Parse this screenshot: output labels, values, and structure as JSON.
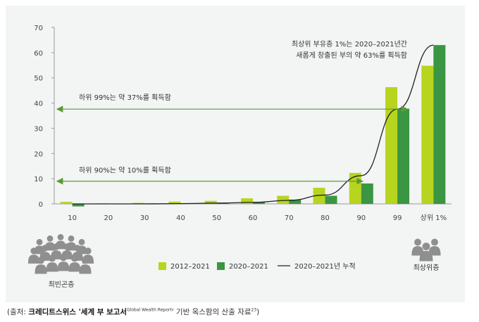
{
  "chart_data": {
    "type": "bar",
    "categories": [
      "10",
      "20",
      "30",
      "40",
      "50",
      "60",
      "70",
      "80",
      "90",
      "99",
      "상위 1%"
    ],
    "series": [
      {
        "name": "2012–2021",
        "values": [
          0.8,
          0.2,
          0.4,
          0.9,
          1.2,
          2.2,
          3.2,
          6.4,
          12.3,
          46.3,
          54.8
        ],
        "color": "#b7d41e"
      },
      {
        "name": "2020–2021",
        "values": [
          -1.0,
          0.1,
          0.2,
          0.3,
          0.5,
          0.8,
          1.7,
          3.2,
          8.1,
          37.8,
          63.0
        ],
        "color": "#3a9642"
      }
    ],
    "line": {
      "name": "2020–2021년 누적",
      "values": [
        0,
        0,
        0,
        0.1,
        0.3,
        0.6,
        1.4,
        3.5,
        11.2,
        37.6,
        63.0
      ],
      "color": "#222222"
    },
    "ylim": [
      0,
      70
    ],
    "yticks": [
      0,
      10,
      20,
      30,
      40,
      50,
      60,
      70
    ],
    "xlabel": "",
    "ylabel": "",
    "grid": false,
    "legend": "bottom-center",
    "annotations": {
      "top_line1": "최상위 부유층 1%는 2020–2021년간",
      "top_line2": "새롭게 창출된 부의 약 63%를 획득함",
      "arrow99": {
        "text": "하위 99%는 약 37%를 획득함",
        "y": 37.6
      },
      "arrow90": {
        "text": "하위 90%는 약 10%를 획득함",
        "y": 9.0
      }
    },
    "groups": {
      "left_label": "최빈곤층",
      "right_label": "최상위층"
    }
  },
  "source": {
    "prefix": "(출처: ",
    "highlight": "크레디트스위스 '세계 부 보고서",
    "report": "Global Wealth Report",
    "suffix": "' 기반 옥스팜의 산출 자료",
    "ref": "23",
    "close": ")"
  },
  "colors": {
    "accent": "#b7d41e",
    "dark_green": "#3a9642",
    "arrow": "#5a9a3a",
    "icon": "#8f8f8f"
  }
}
